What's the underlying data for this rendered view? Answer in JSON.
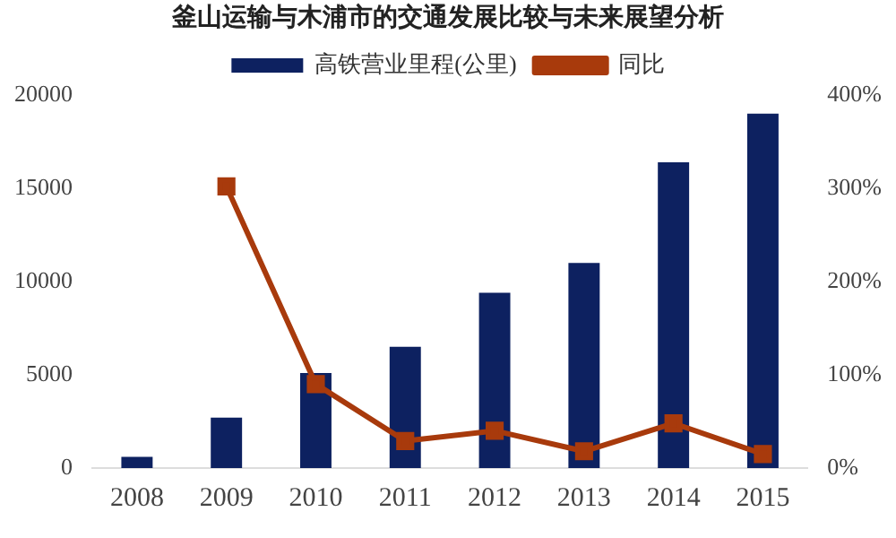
{
  "chart_data": {
    "type": "bar",
    "title": "釜山运输与木浦市的交通发展比较与未来展望分析",
    "categories": [
      "2008",
      "2009",
      "2010",
      "2011",
      "2012",
      "2013",
      "2014",
      "2015"
    ],
    "series": [
      {
        "name": "高铁营业里程(公里)",
        "color": "#0d2160",
        "values": [
          600,
          2700,
          5100,
          6500,
          9400,
          11000,
          16400,
          19000
        ]
      },
      {
        "name": "同比",
        "type": "line",
        "axis": "y2",
        "color": "#a83a0c",
        "marker": "square",
        "values": [
          null,
          302,
          90,
          29,
          40,
          18,
          48,
          15
        ]
      }
    ],
    "ylim": [
      0,
      20000
    ],
    "yticks": [
      0,
      5000,
      10000,
      15000,
      20000
    ],
    "y2lim": [
      0,
      400
    ],
    "y2ticks": [
      {
        "value": 0,
        "label": "0%"
      },
      {
        "value": 100,
        "label": "100%"
      },
      {
        "value": 200,
        "label": "200%"
      },
      {
        "value": 300,
        "label": "300%"
      },
      {
        "value": 400,
        "label": "400%"
      }
    ],
    "grid": false,
    "legend": "top"
  }
}
